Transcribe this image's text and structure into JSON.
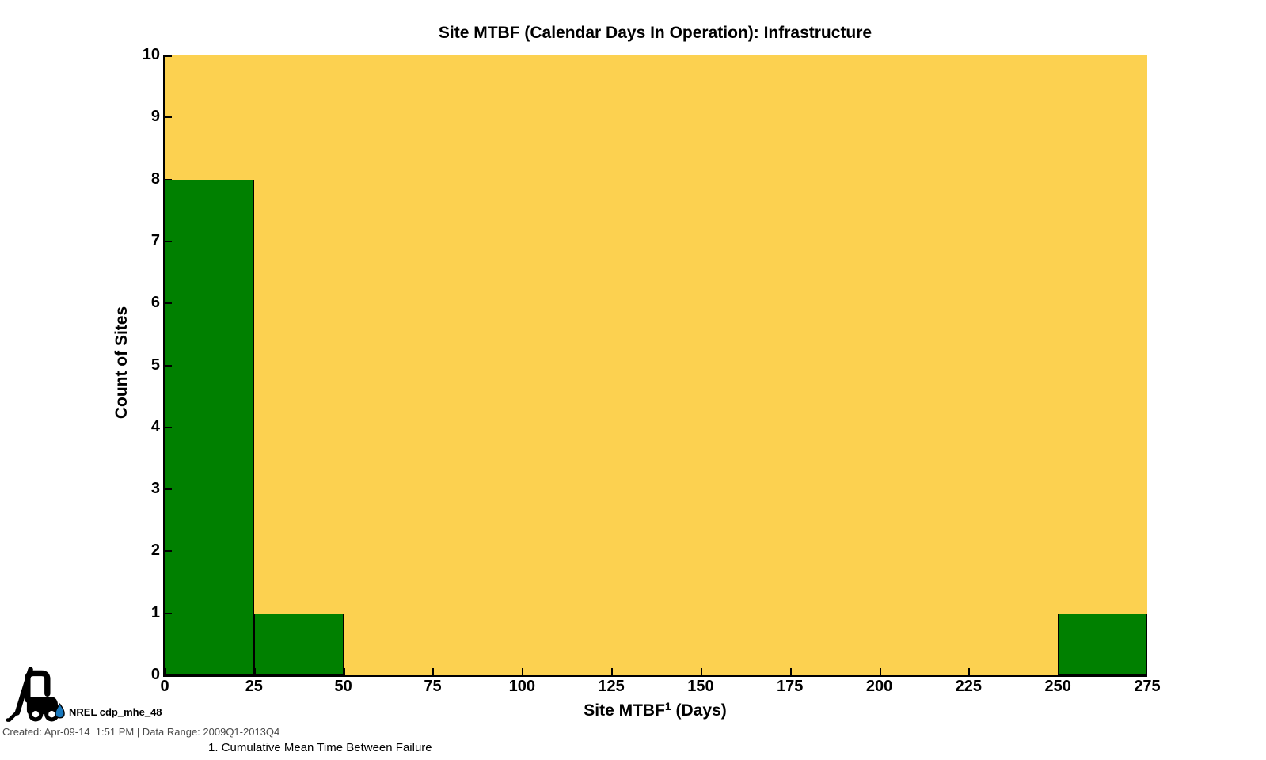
{
  "title": "Site MTBF (Calendar Days In Operation): Infrastructure",
  "chart_data": {
    "type": "bar",
    "subtype": "histogram",
    "title": "Site MTBF (Calendar Days In Operation): Infrastructure",
    "xlabel": "Site MTBF1 (Days)",
    "xlabel_parts": {
      "main": "Site MTBF",
      "sup": "1",
      "rest": " (Days)"
    },
    "ylabel": "Count of Sites",
    "xlim": [
      0,
      275
    ],
    "ylim": [
      0,
      10
    ],
    "x_ticks": [
      0,
      25,
      50,
      75,
      100,
      125,
      150,
      175,
      200,
      225,
      250,
      275
    ],
    "y_ticks": [
      0,
      1,
      2,
      3,
      4,
      5,
      6,
      7,
      8,
      9,
      10
    ],
    "bins": [
      {
        "range": [
          0,
          25
        ],
        "count": 8
      },
      {
        "range": [
          25,
          50
        ],
        "count": 1
      },
      {
        "range": [
          250,
          275
        ],
        "count": 1
      }
    ],
    "bar_color": "#008000",
    "bar_edge_color": "#000000",
    "plot_bg_color": "#FCD150",
    "axis_color": "#000000",
    "grid": false,
    "legend": null
  },
  "footer": {
    "logo": "forklift-icon",
    "logo_drop_color": "#1878BE",
    "source_label": "NREL cdp_mhe_48",
    "created_line": "Created: Apr-09-14  1:51 PM | Data Range: 2009Q1-2013Q4",
    "footnote": "1. Cumulative Mean Time Between Failure"
  }
}
